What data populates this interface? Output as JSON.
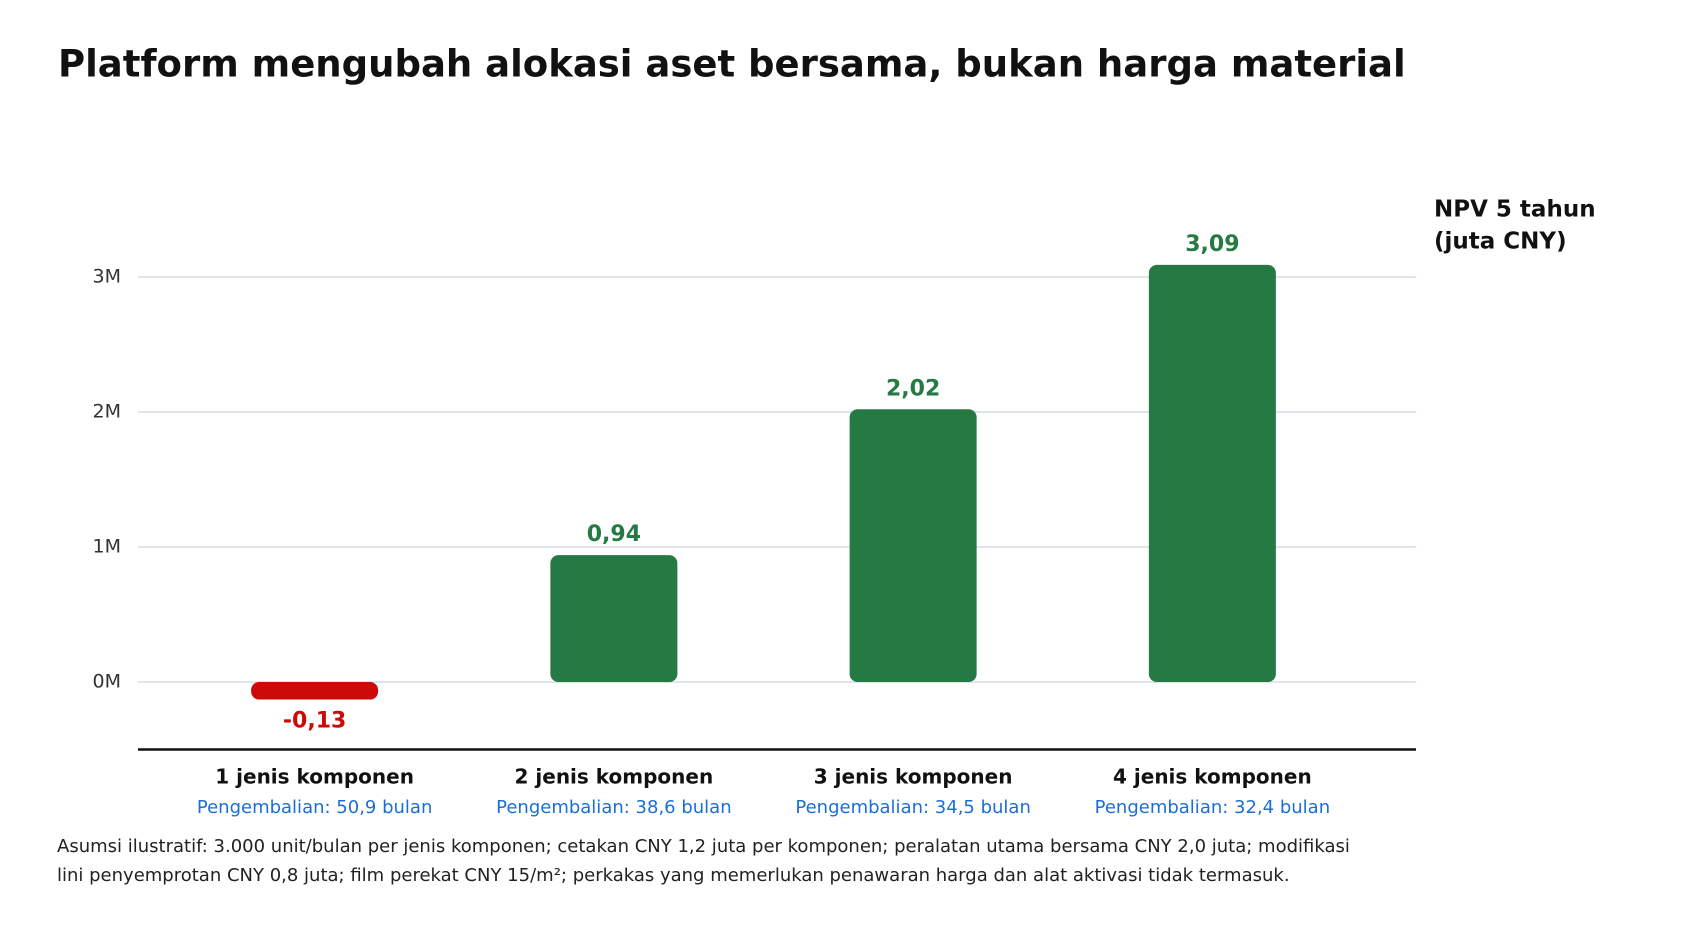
{
  "chart_data": {
    "type": "bar",
    "title": "Platform mengubah alokasi aset bersama, bukan harga material",
    "y_axis_label": [
      "NPV 5 tahun",
      "(juta CNY)"
    ],
    "categories": [
      "1 jenis komponen",
      "2 jenis komponen",
      "3 jenis komponen",
      "4 jenis komponen"
    ],
    "subcategories": [
      "Pengembalian: 50,9 bulan",
      "Pengembalian: 38,6 bulan",
      "Pengembalian: 34,5 bulan",
      "Pengembalian: 32,4 bulan"
    ],
    "values": [
      -0.13,
      0.94,
      2.02,
      3.09
    ],
    "value_labels": [
      "-0,13",
      "0,94",
      "2,02",
      "3,09"
    ],
    "colors": [
      "#cc0a0a",
      "#247a42",
      "#247a42",
      "#247a42"
    ],
    "ylim": [
      -0.5,
      3.2
    ],
    "yticks": [
      {
        "value": 0,
        "label": "0M"
      },
      {
        "value": 1,
        "label": "1M"
      },
      {
        "value": 2,
        "label": "2M"
      },
      {
        "value": 3,
        "label": "3M"
      }
    ],
    "grid": true,
    "note": "Asumsi ilustratif: 3.000 unit/bulan per jenis komponen; cetakan CNY 1,2 juta per komponen; peralatan utama bersama CNY 2,0 juta; modifikasi lini penyemprotan CNY 0,8 juta; film perekat CNY 15/m²; perkakas yang memerlukan penawaran harga dan alat aktivasi tidak termasuk."
  }
}
